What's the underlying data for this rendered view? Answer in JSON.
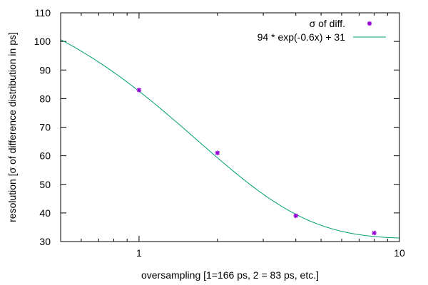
{
  "chart_data": {
    "type": "scatter",
    "title": "",
    "xlabel": "oversampling [1=166 ps, 2 = 83 ps, etc.]",
    "ylabel": "resolution [σ  of difference distribution in ps]",
    "x_scale": "log",
    "xlim": [
      0.5,
      10
    ],
    "ylim": [
      30,
      110
    ],
    "grid": false,
    "legend_position": "top-right",
    "x_ticks": [
      {
        "value": 1,
        "label": "1"
      },
      {
        "value": 10,
        "label": "10"
      }
    ],
    "y_ticks": [
      {
        "value": 30,
        "label": "30"
      },
      {
        "value": 40,
        "label": "40"
      },
      {
        "value": 50,
        "label": "50"
      },
      {
        "value": 60,
        "label": "60"
      },
      {
        "value": 70,
        "label": "70"
      },
      {
        "value": 80,
        "label": "80"
      },
      {
        "value": 90,
        "label": "90"
      },
      {
        "value": 100,
        "label": "100"
      },
      {
        "value": 110,
        "label": "110"
      }
    ],
    "series": [
      {
        "name": "σ  of diff.",
        "kind": "points",
        "color": "#9400d3",
        "x": [
          1,
          2,
          4,
          8
        ],
        "y": [
          83,
          61,
          39,
          33
        ]
      },
      {
        "name": "94 * exp(-0.6x) + 31",
        "kind": "line",
        "color": "#009e73",
        "function": {
          "a": 94,
          "b": -0.6,
          "c": 31
        }
      }
    ]
  }
}
